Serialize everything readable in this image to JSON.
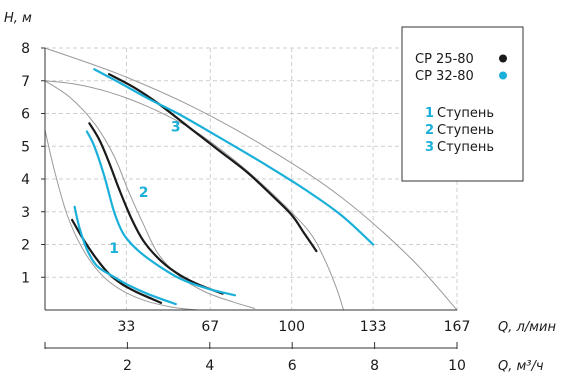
{
  "chart_data": {
    "type": "line",
    "y_axis": {
      "title": "H, м",
      "min": 0,
      "max": 8,
      "ticks": [
        "1",
        "2",
        "3",
        "4",
        "5",
        "6",
        "7",
        "8"
      ]
    },
    "x_axis_primary": {
      "title": "Q, л/мин",
      "min": 0,
      "max": 167,
      "ticks": [
        33,
        67,
        100,
        133,
        167
      ],
      "tick_labels": [
        "33",
        "67",
        "100",
        "133",
        "167"
      ]
    },
    "x_axis_secondary": {
      "title": "Q, м³/ч",
      "min": 0,
      "max": 10,
      "ticks": [
        2,
        4,
        6,
        8,
        10
      ],
      "tick_labels": [
        "2",
        "4",
        "6",
        "8",
        "10"
      ]
    },
    "grid": true,
    "legend": {
      "position": "top-right",
      "models": [
        {
          "label": "CP 25-80",
          "color": "#1a1a1a"
        },
        {
          "label": "CP 32-80",
          "color": "#1ab0d9"
        }
      ],
      "stages": [
        {
          "num": "1",
          "label": "Ступень"
        },
        {
          "num": "2",
          "label": "Ступень"
        },
        {
          "num": "3",
          "label": "Ступень"
        }
      ]
    },
    "curve_labels": [
      {
        "text": "1",
        "x": 28,
        "y": 1.9
      },
      {
        "text": "2",
        "x": 40,
        "y": 3.6
      },
      {
        "text": "3",
        "x": 53,
        "y": 5.6
      }
    ],
    "series": [
      {
        "color": "#1a1a1a",
        "width": 2.2,
        "x": [
          11,
          16,
          21,
          26,
          31,
          37,
          43,
          47
        ],
        "y": [
          2.75,
          2.1,
          1.55,
          1.1,
          0.8,
          0.55,
          0.35,
          0.22
        ]
      },
      {
        "color": "#1ab0d9",
        "width": 2.2,
        "x": [
          12,
          14,
          17,
          21,
          27,
          34,
          42,
          53
        ],
        "y": [
          3.15,
          2.5,
          1.85,
          1.35,
          1.05,
          0.75,
          0.48,
          0.18
        ]
      },
      {
        "color": "#1a1a1a",
        "width": 2.2,
        "x": [
          18,
          22,
          26,
          30,
          35,
          40,
          47,
          55,
          63,
          72
        ],
        "y": [
          5.7,
          5.2,
          4.5,
          3.7,
          2.8,
          2.1,
          1.5,
          1.05,
          0.75,
          0.5
        ]
      },
      {
        "color": "#1ab0d9",
        "width": 2.2,
        "x": [
          17,
          20,
          24,
          28,
          32,
          38,
          46,
          55,
          66,
          77
        ],
        "y": [
          5.45,
          5.0,
          4.1,
          3.0,
          2.3,
          1.8,
          1.35,
          0.95,
          0.65,
          0.45
        ]
      },
      {
        "color": "#1a1a1a",
        "width": 2.2,
        "x": [
          26,
          36,
          46,
          58,
          70,
          82,
          92,
          100,
          105,
          110
        ],
        "y": [
          7.2,
          6.8,
          6.3,
          5.6,
          4.9,
          4.2,
          3.5,
          2.9,
          2.35,
          1.8
        ]
      },
      {
        "color": "#1ab0d9",
        "width": 2.2,
        "x": [
          20,
          30,
          42,
          55,
          70,
          88,
          105,
          120,
          133
        ],
        "y": [
          7.35,
          6.95,
          6.45,
          5.95,
          5.3,
          4.5,
          3.7,
          2.9,
          2.0
        ]
      },
      {
        "color": "#9a9a9a",
        "width": 1,
        "x": [
          0,
          30,
          60,
          90,
          120,
          148,
          167
        ],
        "y": [
          8.0,
          7.2,
          6.2,
          4.95,
          3.45,
          1.6,
          0.0
        ]
      },
      {
        "color": "#9a9a9a",
        "width": 1,
        "x": [
          0,
          12,
          26,
          42,
          60,
          78,
          95,
          107,
          113,
          118,
          121
        ],
        "y": [
          7.0,
          6.9,
          6.65,
          6.2,
          5.5,
          4.5,
          3.35,
          2.4,
          1.6,
          0.7,
          0.0
        ]
      },
      {
        "color": "#9a9a9a",
        "width": 1,
        "x": [
          0,
          10,
          20,
          28,
          34,
          40,
          46,
          55,
          65,
          76,
          85
        ],
        "y": [
          7.0,
          6.5,
          5.7,
          4.7,
          3.6,
          2.6,
          1.7,
          1.0,
          0.55,
          0.25,
          0.05
        ]
      },
      {
        "color": "#9a9a9a",
        "width": 1,
        "x": [
          0,
          4,
          9,
          15,
          22,
          30,
          40,
          52,
          62
        ],
        "y": [
          5.5,
          4.2,
          2.9,
          1.9,
          1.15,
          0.65,
          0.3,
          0.08,
          0.0
        ]
      }
    ]
  }
}
